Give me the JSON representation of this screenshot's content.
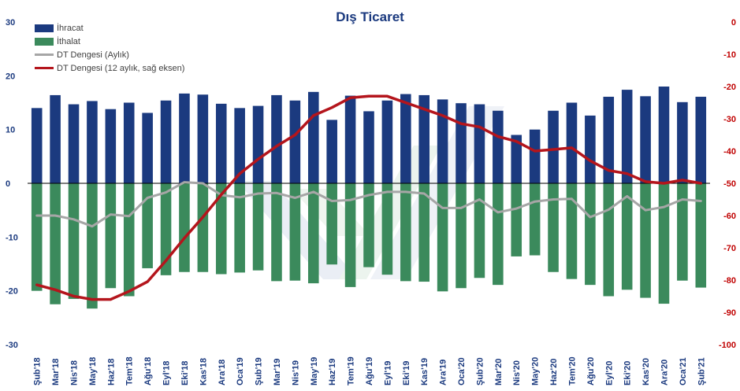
{
  "colors": {
    "export": "#1b3a7f",
    "import": "#3b8a5c",
    "monthly_balance": "#a6a6a6",
    "rolling_balance": "#b4151c",
    "title": "#1b3a7f",
    "left_axis_text": "#1b3a7f",
    "right_axis_text": "#c00000"
  },
  "chart_data": {
    "type": "bar",
    "title": "Dış Ticaret",
    "categories": [
      "Şub'18",
      "Mar'18",
      "Nis'18",
      "May'18",
      "Haz'18",
      "Tem'18",
      "Ağu'18",
      "Eyl'18",
      "Eki'18",
      "Kas'18",
      "Ara'18",
      "Oca'19",
      "Şub'19",
      "Mar'19",
      "Nis'19",
      "May'19",
      "Haz'19",
      "Tem'19",
      "Ağu'19",
      "Eyl'19",
      "Eki'19",
      "Kas'19",
      "Ara'19",
      "Oca'20",
      "Şub'20",
      "Mar'20",
      "Nis'20",
      "May'20",
      "Haz'20",
      "Tem'20",
      "Ağu'20",
      "Eyl'20",
      "Eki'20",
      "Kas'20",
      "Ara'20",
      "Oca'21",
      "Şub'21"
    ],
    "series": [
      {
        "name": "İhracat",
        "type": "bar",
        "axis": "left",
        "values": [
          14.0,
          16.4,
          14.7,
          15.3,
          13.8,
          15.0,
          13.1,
          15.4,
          16.7,
          16.5,
          14.8,
          14.0,
          14.4,
          16.4,
          15.4,
          17.0,
          11.8,
          16.3,
          13.4,
          15.4,
          16.6,
          16.4,
          15.6,
          14.9,
          14.7,
          13.5,
          9.0,
          10.0,
          13.5,
          15.0,
          12.6,
          16.1,
          17.4,
          16.2,
          18.0,
          15.1,
          16.1
        ]
      },
      {
        "name": "İthalat",
        "type": "bar",
        "axis": "left",
        "values": [
          -20.0,
          -22.5,
          -21.5,
          -23.3,
          -19.5,
          -21.0,
          -15.8,
          -17.1,
          -16.5,
          -16.5,
          -16.9,
          -16.6,
          -16.2,
          -18.2,
          -18.1,
          -18.6,
          -15.1,
          -19.3,
          -15.6,
          -17.0,
          -18.2,
          -18.3,
          -20.1,
          -19.5,
          -17.6,
          -18.9,
          -13.6,
          -13.4,
          -16.5,
          -17.8,
          -18.9,
          -21.0,
          -19.8,
          -21.3,
          -22.4,
          -18.1,
          -19.4
        ]
      },
      {
        "name": "DT Dengesi (Aylık)",
        "type": "line",
        "axis": "left",
        "values": [
          -6.0,
          -6.0,
          -6.7,
          -8.0,
          -5.8,
          -6.1,
          -2.7,
          -1.7,
          0.2,
          0.0,
          -2.2,
          -2.6,
          -1.9,
          -1.8,
          -2.7,
          -1.6,
          -3.3,
          -3.1,
          -2.2,
          -1.6,
          -1.6,
          -1.9,
          -4.6,
          -4.6,
          -3.0,
          -5.4,
          -4.7,
          -3.4,
          -3.0,
          -2.9,
          -6.3,
          -4.9,
          -2.4,
          -5.0,
          -4.4,
          -3.0,
          -3.3
        ]
      },
      {
        "name": "DT Dengesi (12 aylık, sağ eksen)",
        "type": "line",
        "axis": "right",
        "values": [
          -81.5,
          -83.0,
          -85.0,
          -86.0,
          -86.0,
          -83.5,
          -80.5,
          -74.0,
          -67.0,
          -60.5,
          -53.5,
          -47.0,
          -42.5,
          -38.5,
          -35.0,
          -29.0,
          -26.5,
          -23.5,
          -23.0,
          -23.0,
          -25.0,
          -27.0,
          -29.0,
          -31.5,
          -32.5,
          -35.5,
          -37.0,
          -40.0,
          -39.5,
          -39.0,
          -43.0,
          -46.0,
          -47.0,
          -49.5,
          -50.0,
          -49.0,
          -50.0
        ]
      }
    ],
    "y_left": {
      "min": -30,
      "max": 30,
      "ticks": [
        30,
        20,
        10,
        0,
        -10,
        -20,
        -30
      ]
    },
    "y_right": {
      "min": -100,
      "max": 0,
      "ticks": [
        0,
        -10,
        -20,
        -30,
        -40,
        -50,
        -60,
        -70,
        -80,
        -90,
        -100
      ]
    },
    "legend": {
      "position": "top-left"
    }
  }
}
